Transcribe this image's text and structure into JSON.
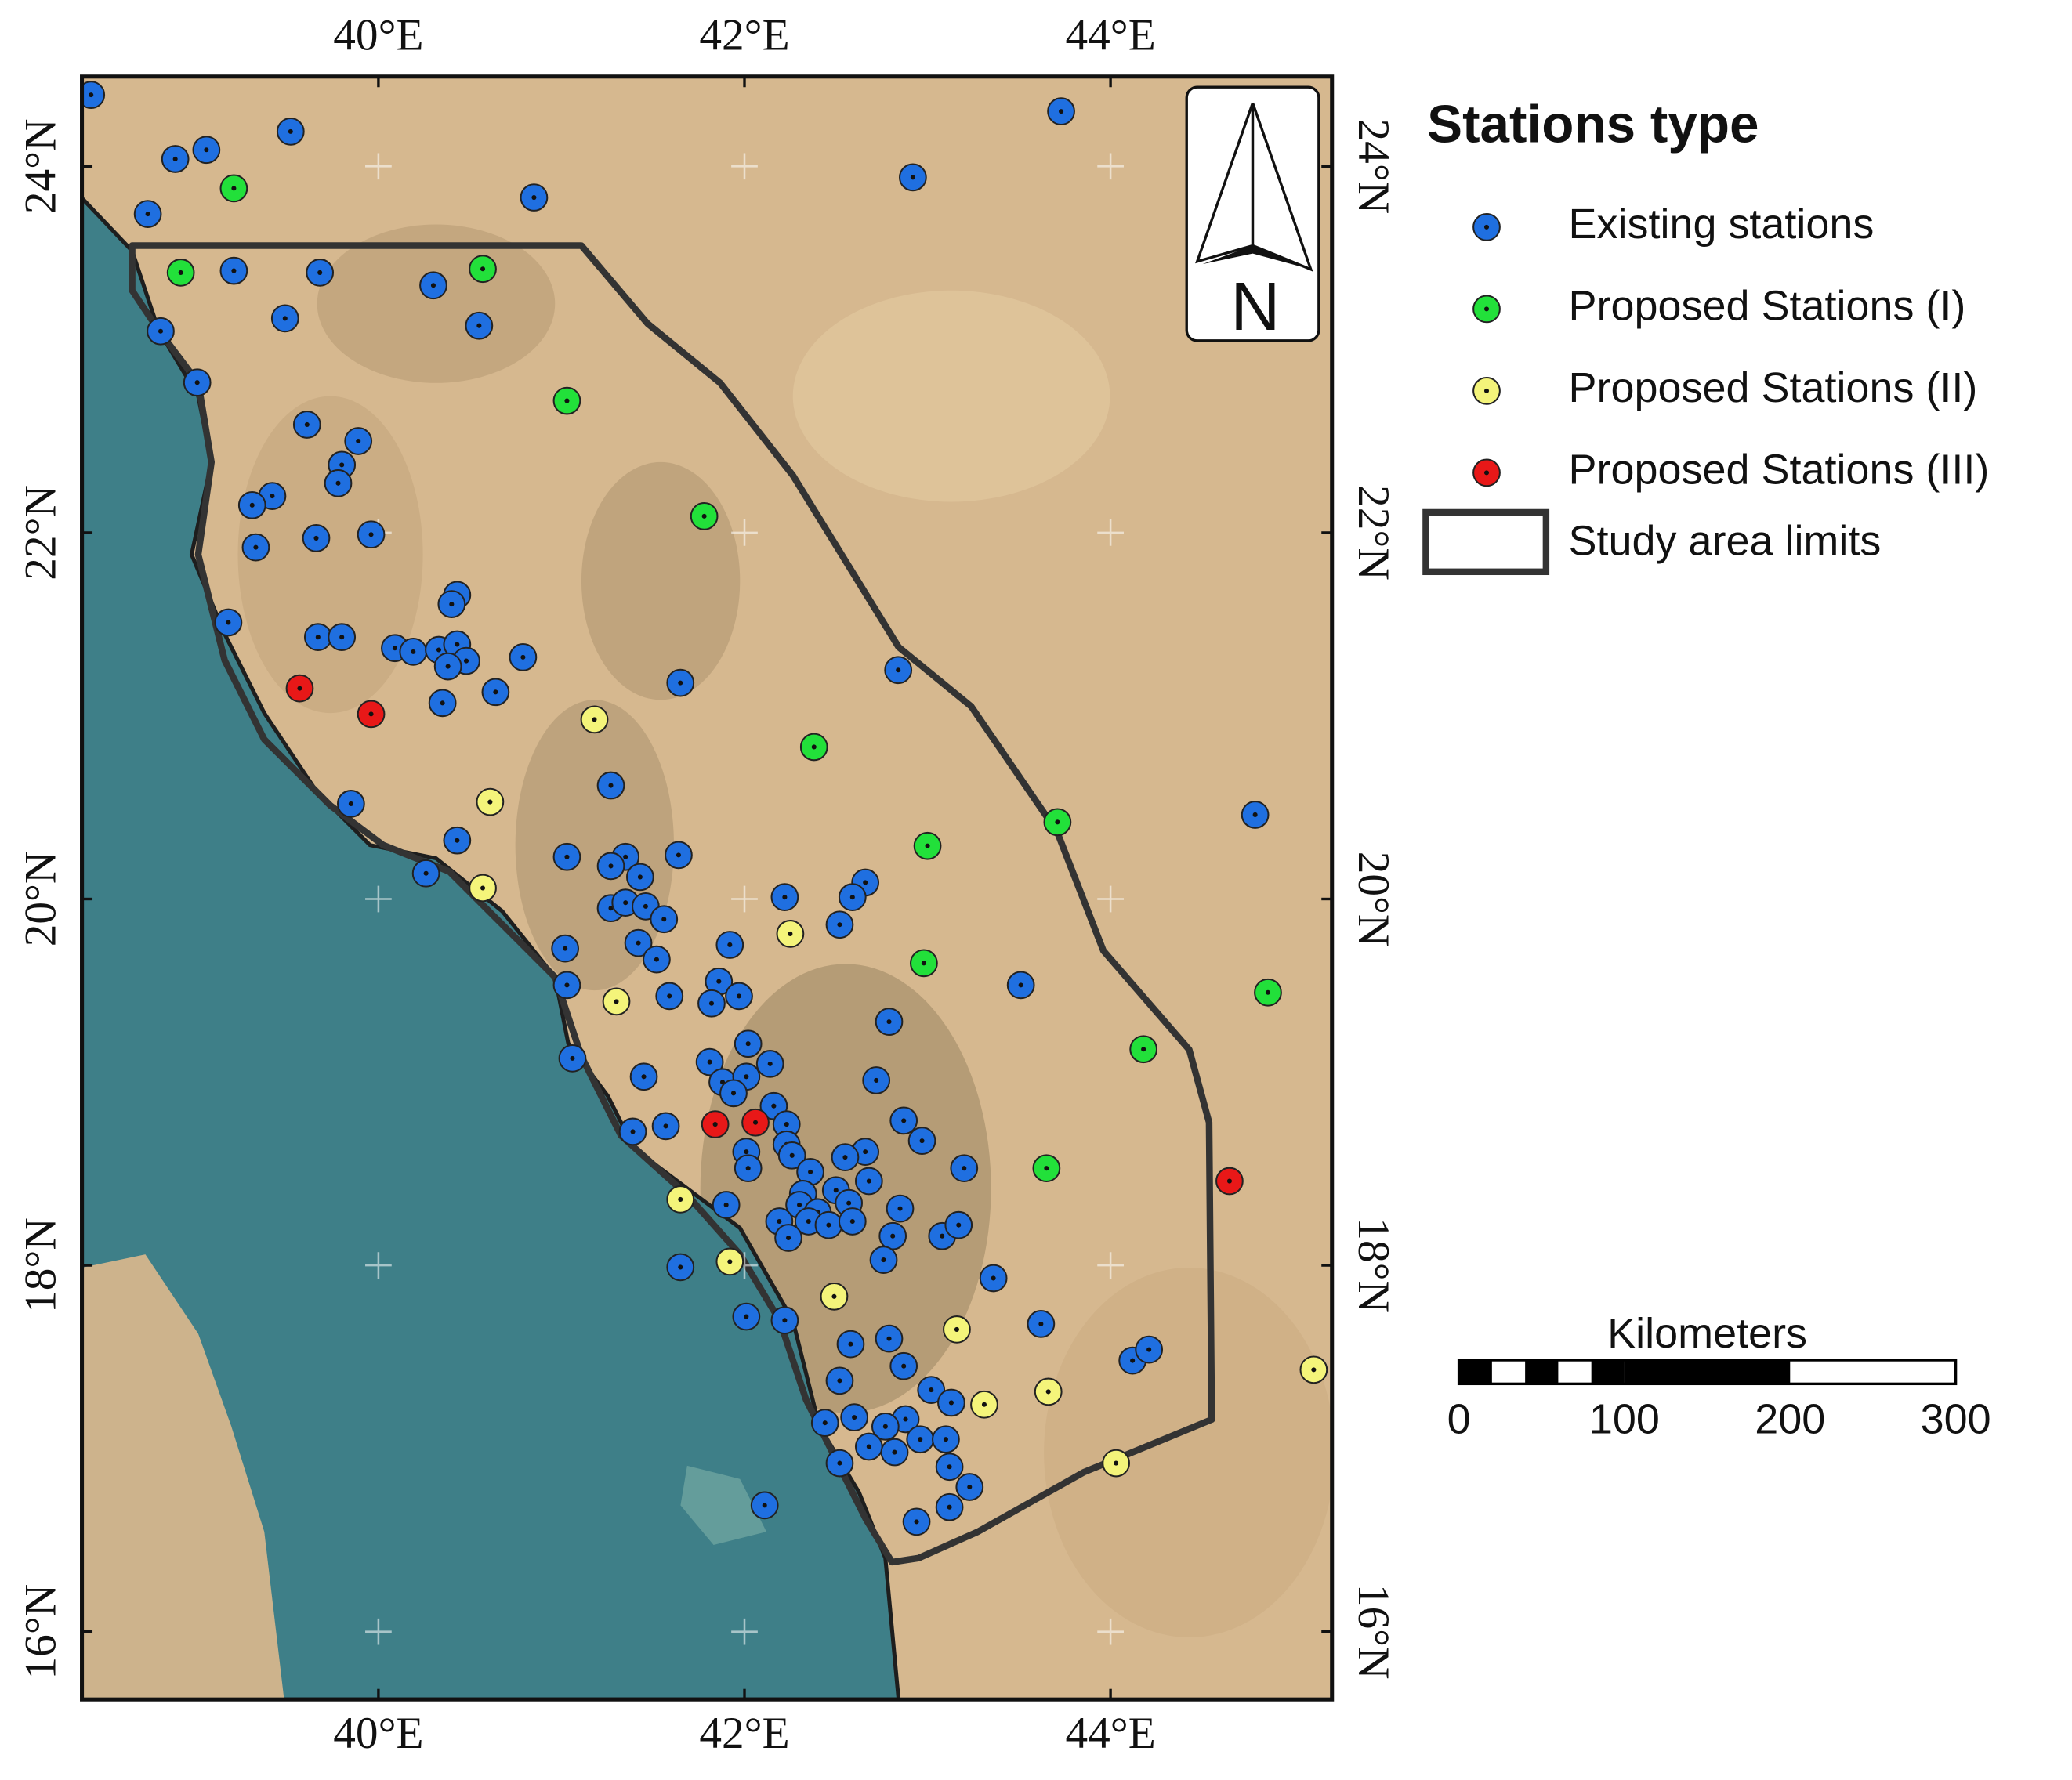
{
  "chart_data": {
    "type": "scatter",
    "xlim": [
      38.38,
      45.21
    ],
    "ylim": [
      15.63,
      24.49
    ],
    "xticks": [
      {
        "value": 40,
        "label": "40°E"
      },
      {
        "value": 42,
        "label": "42°E"
      },
      {
        "value": 44,
        "label": "44°E"
      }
    ],
    "yticks": [
      {
        "value": 16,
        "label": "16°N"
      },
      {
        "value": 18,
        "label": "18°N"
      },
      {
        "value": 20,
        "label": "20°N"
      },
      {
        "value": 22,
        "label": "22°N"
      },
      {
        "value": 24,
        "label": "24°N"
      }
    ],
    "legend_title": "Stations type",
    "study_area_label": "Study area limits",
    "north_arrow": "N",
    "scale_bar": {
      "title": "Kilometers",
      "ticks": [
        0,
        100,
        200,
        300
      ]
    },
    "series": [
      {
        "name": "Existing stations",
        "color": "#1f6fe0",
        "lon": [
          38.43,
          39.52,
          38.89,
          39.06,
          38.74,
          40.85,
          42.92,
          43.73,
          39.21,
          39.68,
          40.3,
          39.49,
          40.55,
          38.81,
          39.01,
          39.61,
          39.89,
          39.8,
          39.78,
          39.42,
          39.31,
          39.33,
          39.66,
          39.96,
          40.43,
          40.4,
          39.18,
          39.67,
          39.8,
          40.09,
          40.19,
          40.33,
          40.43,
          40.48,
          40.38,
          40.35,
          40.64,
          40.79,
          41.65,
          42.84,
          39.85,
          41.27,
          40.43,
          40.26,
          41.03,
          41.64,
          41.35,
          41.27,
          41.43,
          41.27,
          41.35,
          41.46,
          41.56,
          41.42,
          41.52,
          41.02,
          41.03,
          41.92,
          42.22,
          42.66,
          42.59,
          42.52,
          41.59,
          41.86,
          41.97,
          41.82,
          43.51,
          41.06,
          41.45,
          42.02,
          42.14,
          41.81,
          41.88,
          42.01,
          41.94,
          42.79,
          42.72,
          41.39,
          41.57,
          42.16,
          42.23,
          42.23,
          42.26,
          42.01,
          42.02,
          42.87,
          42.97,
          42.66,
          42.55,
          42.36,
          42.68,
          43.2,
          42.32,
          42.5,
          41.9,
          42.3,
          42.4,
          42.57,
          42.85,
          42.19,
          42.35,
          42.46,
          42.59,
          42.24,
          42.81,
          43.08,
          43.17,
          42.76,
          41.65,
          43.36,
          42.01,
          42.22,
          43.62,
          42.58,
          42.79,
          42.87,
          44.12,
          44.21,
          42.52,
          43.02,
          43.13,
          42.44,
          42.6,
          42.88,
          42.77,
          42.96,
          43.1,
          42.68,
          42.82,
          42.52,
          43.12,
          43.23,
          43.12,
          42.11,
          42.94,
          44.79
        ],
        "lat": [
          24.39,
          24.19,
          24.04,
          24.09,
          23.74,
          23.83,
          23.94,
          24.3,
          23.43,
          23.42,
          23.35,
          23.17,
          23.13,
          23.1,
          22.82,
          22.59,
          22.5,
          22.37,
          22.27,
          22.2,
          22.15,
          21.92,
          21.97,
          21.99,
          21.66,
          21.61,
          21.51,
          21.43,
          21.43,
          21.37,
          21.35,
          21.36,
          21.39,
          21.3,
          21.27,
          21.07,
          21.13,
          21.32,
          21.18,
          21.25,
          20.52,
          20.62,
          20.32,
          20.14,
          20.23,
          20.24,
          20.23,
          20.18,
          20.12,
          19.95,
          19.98,
          19.96,
          19.89,
          19.76,
          19.67,
          19.73,
          19.53,
          19.75,
          20.01,
          20.09,
          20.01,
          19.86,
          19.47,
          19.55,
          19.47,
          19.43,
          19.53,
          19.13,
          19.03,
          19.21,
          19.1,
          19.11,
          19.0,
          19.03,
          18.94,
          19.33,
          19.01,
          18.73,
          18.76,
          18.87,
          18.77,
          18.66,
          18.6,
          18.62,
          18.53,
          18.79,
          18.68,
          18.62,
          18.59,
          18.51,
          18.46,
          18.53,
          18.39,
          18.41,
          18.33,
          18.33,
          18.29,
          18.34,
          18.31,
          18.24,
          18.24,
          18.22,
          18.24,
          18.15,
          18.16,
          18.16,
          18.22,
          18.03,
          17.99,
          17.93,
          17.72,
          17.7,
          17.68,
          17.57,
          17.6,
          17.45,
          17.48,
          17.54,
          17.37,
          17.32,
          17.25,
          17.14,
          17.17,
          17.16,
          17.12,
          17.05,
          17.05,
          17.01,
          16.98,
          16.92,
          16.9,
          16.79,
          16.68,
          16.69,
          16.6,
          20.46
        ]
      },
      {
        "name": "Proposed Stations (I)",
        "color": "#22e03a",
        "lon": [
          39.21,
          38.92,
          40.57,
          41.03,
          41.78,
          42.38,
          43.71,
          43.0,
          42.98,
          44.86,
          44.18,
          43.65
        ],
        "lat": [
          23.88,
          23.42,
          23.44,
          22.72,
          22.09,
          20.83,
          20.42,
          20.29,
          19.65,
          19.49,
          19.18,
          18.53
        ]
      },
      {
        "name": "Proposed Stations (II)",
        "color": "#f4f47a",
        "lon": [
          41.18,
          40.61,
          40.57,
          42.25,
          41.3,
          41.65,
          41.92,
          42.49,
          43.16,
          43.66,
          43.31,
          44.03,
          45.11
        ],
        "lat": [
          20.98,
          20.53,
          20.06,
          19.81,
          19.44,
          18.36,
          18.02,
          17.83,
          17.65,
          17.31,
          17.24,
          16.92,
          17.43
        ]
      },
      {
        "name": "Proposed Stations (III)",
        "color": "#e81818",
        "lon": [
          39.57,
          39.96,
          41.84,
          42.06,
          44.65
        ],
        "lat": [
          21.15,
          21.01,
          18.77,
          18.78,
          18.46
        ]
      }
    ]
  }
}
